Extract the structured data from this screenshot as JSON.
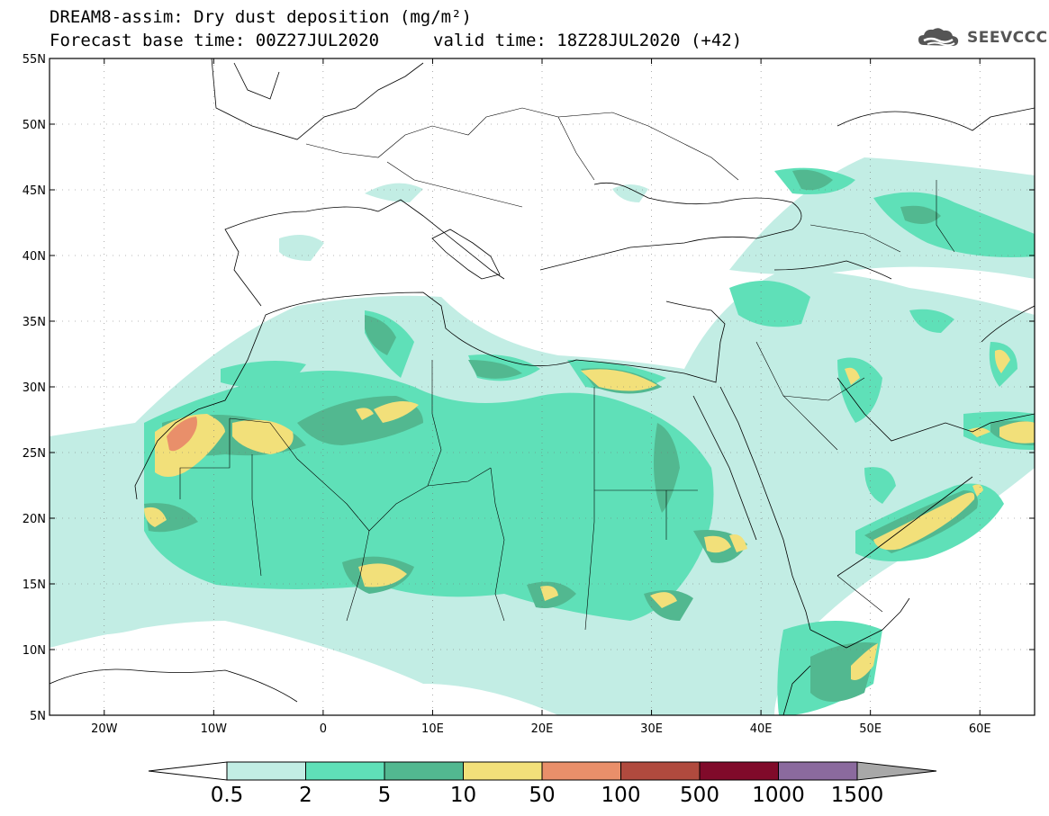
{
  "title": {
    "line1": "DREAM8-assim: Dry dust deposition (mg/m²)",
    "base_time": "Forecast base time: 00Z27JUL2020",
    "valid_time": "valid time: 18Z28JUL2020 (+42)"
  },
  "logo": {
    "text": "SEEVCCC",
    "icon": "cloud-icon"
  },
  "map": {
    "lon_range": [
      -25,
      65
    ],
    "lat_range": [
      5,
      55
    ],
    "lat_ticks": [
      {
        "value": 55,
        "label": "55N"
      },
      {
        "value": 50,
        "label": "50N"
      },
      {
        "value": 45,
        "label": "45N"
      },
      {
        "value": 40,
        "label": "40N"
      },
      {
        "value": 35,
        "label": "35N"
      },
      {
        "value": 30,
        "label": "30N"
      },
      {
        "value": 25,
        "label": "25N"
      },
      {
        "value": 20,
        "label": "20N"
      },
      {
        "value": 15,
        "label": "15N"
      },
      {
        "value": 10,
        "label": "10N"
      },
      {
        "value": 5,
        "label": "5N"
      }
    ],
    "lon_ticks": [
      {
        "value": -20,
        "label": "20W"
      },
      {
        "value": -10,
        "label": "10W"
      },
      {
        "value": 0,
        "label": "0"
      },
      {
        "value": 10,
        "label": "10E"
      },
      {
        "value": 20,
        "label": "20E"
      },
      {
        "value": 30,
        "label": "30E"
      },
      {
        "value": 40,
        "label": "40E"
      },
      {
        "value": 50,
        "label": "50E"
      },
      {
        "value": 60,
        "label": "60E"
      }
    ]
  },
  "colorbar": {
    "levels": [
      "0.5",
      "2",
      "5",
      "10",
      "50",
      "100",
      "500",
      "1000",
      "1500"
    ],
    "colors": [
      "#c2ede4",
      "#5fe0b8",
      "#52b890",
      "#f2e07a",
      "#e98f6a",
      "#b04a3e",
      "#800a2a",
      "#8b6a9e"
    ],
    "under_color": "#ffffff",
    "over_color": "#a8a8a8"
  }
}
